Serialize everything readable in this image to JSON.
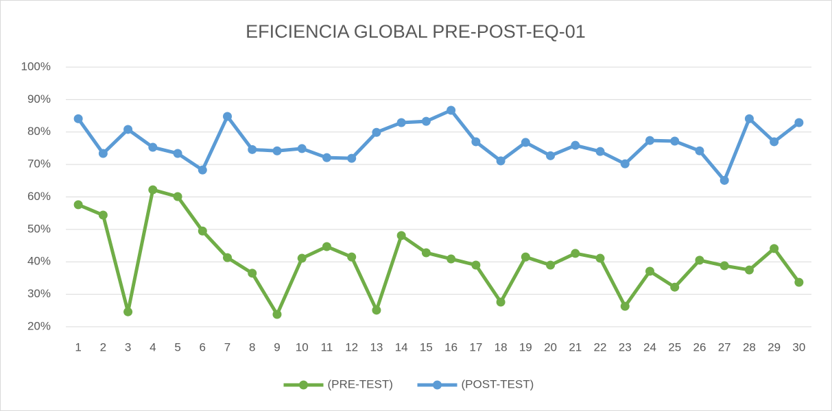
{
  "chart_data": {
    "type": "line",
    "title": "EFICIENCIA GLOBAL  PRE-POST-EQ-01",
    "categories": [
      "1",
      "2",
      "3",
      "4",
      "5",
      "6",
      "7",
      "8",
      "9",
      "10",
      "11",
      "12",
      "13",
      "14",
      "15",
      "16",
      "17",
      "18",
      "19",
      "20",
      "21",
      "22",
      "23",
      "24",
      "25",
      "26",
      "27",
      "28",
      "29",
      "30"
    ],
    "series": [
      {
        "name": "(PRE-TEST)",
        "color": "#70ad47",
        "values": [
          57.6,
          54.4,
          24.6,
          62.2,
          60.1,
          49.5,
          41.3,
          36.5,
          23.8,
          41.1,
          44.7,
          41.5,
          25.1,
          48.1,
          42.8,
          40.9,
          39.0,
          27.6,
          41.5,
          39.0,
          42.6,
          41.1,
          26.3,
          37.1,
          32.2,
          40.5,
          38.8,
          37.5,
          44.1,
          33.7
        ]
      },
      {
        "name": "(POST-TEST)",
        "color": "#5b9bd5",
        "values": [
          84.1,
          73.4,
          80.8,
          75.3,
          73.4,
          68.3,
          84.8,
          74.6,
          74.2,
          74.9,
          72.1,
          71.9,
          79.9,
          82.9,
          83.3,
          86.7,
          77.0,
          71.1,
          76.8,
          72.7,
          75.9,
          74.0,
          70.2,
          77.4,
          77.2,
          74.2,
          65.1,
          84.1,
          77.0,
          82.9
        ]
      }
    ],
    "ylim": [
      20,
      100
    ],
    "yticks": [
      {
        "value": 20,
        "label": "20%"
      },
      {
        "value": 30,
        "label": "30%"
      },
      {
        "value": 40,
        "label": "40%"
      },
      {
        "value": 50,
        "label": "50%"
      },
      {
        "value": 60,
        "label": "60%"
      },
      {
        "value": 70,
        "label": "70%"
      },
      {
        "value": 80,
        "label": "80%"
      },
      {
        "value": 90,
        "label": "90%"
      },
      {
        "value": 100,
        "label": "100%"
      }
    ],
    "grid": true,
    "legend": "bottom"
  }
}
